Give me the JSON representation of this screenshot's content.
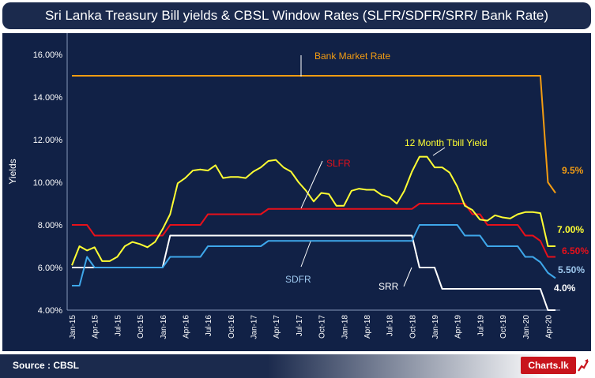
{
  "title": "Sri Lanka Treasury Bill yields  &  CBSL  Window  Rates (SLFR/SDFR/SRR/ Bank Rate)",
  "source": "Source : CBSL",
  "logo_text": "Charts.lk",
  "chart_data": {
    "type": "line",
    "ylabel": "Yields",
    "ylim": [
      4,
      17
    ],
    "yticks": [
      "4.00%",
      "6.00%",
      "8.00%",
      "10.00%",
      "12.00%",
      "14.00%",
      "16.00%"
    ],
    "yticks_values": [
      4,
      6,
      8,
      10,
      12,
      14,
      16
    ],
    "xtick_labels": [
      "Jan-15",
      "Apr-15",
      "Jul-15",
      "Oct-15",
      "Jan-16",
      "Apr-16",
      "Jul-16",
      "Oct-16",
      "Jan-17",
      "Apr-17",
      "Jul-17",
      "Oct-17",
      "Jan-18",
      "Apr-18",
      "Jul-18",
      "Oct-18",
      "Jan-19",
      "Apr-19",
      "Jul-19",
      "Oct-19",
      "Jan-20",
      "Apr-20"
    ],
    "x": [
      "Jan-15",
      "Feb-15",
      "Mar-15",
      "Apr-15",
      "May-15",
      "Jun-15",
      "Jul-15",
      "Aug-15",
      "Sep-15",
      "Oct-15",
      "Nov-15",
      "Dec-15",
      "Jan-16",
      "Feb-16",
      "Mar-16",
      "Apr-16",
      "May-16",
      "Jun-16",
      "Jul-16",
      "Aug-16",
      "Sep-16",
      "Oct-16",
      "Nov-16",
      "Dec-16",
      "Jan-17",
      "Feb-17",
      "Mar-17",
      "Apr-17",
      "May-17",
      "Jun-17",
      "Jul-17",
      "Aug-17",
      "Sep-17",
      "Oct-17",
      "Nov-17",
      "Dec-17",
      "Jan-18",
      "Feb-18",
      "Mar-18",
      "Apr-18",
      "May-18",
      "Jun-18",
      "Jul-18",
      "Aug-18",
      "Sep-18",
      "Oct-18",
      "Nov-18",
      "Dec-18",
      "Jan-19",
      "Feb-19",
      "Mar-19",
      "Apr-19",
      "May-19",
      "Jun-19",
      "Jul-19",
      "Aug-19",
      "Sep-19",
      "Oct-19",
      "Nov-19",
      "Dec-19",
      "Jan-20",
      "Feb-20",
      "Mar-20",
      "Apr-20",
      "May-20"
    ],
    "series": [
      {
        "name": "Bank Market Rate",
        "color": "#f39c12",
        "values": [
          15,
          15,
          15,
          15,
          15,
          15,
          15,
          15,
          15,
          15,
          15,
          15,
          15,
          15,
          15,
          15,
          15,
          15,
          15,
          15,
          15,
          15,
          15,
          15,
          15,
          15,
          15,
          15,
          15,
          15,
          15,
          15,
          15,
          15,
          15,
          15,
          15,
          15,
          15,
          15,
          15,
          15,
          15,
          15,
          15,
          15,
          15,
          15,
          15,
          15,
          15,
          15,
          15,
          15,
          15,
          15,
          15,
          15,
          15,
          15,
          15,
          15,
          15,
          10,
          9.5
        ]
      },
      {
        "name": "12 Month Tbill Yield",
        "color": "#ffff33",
        "values": [
          6.1,
          7.0,
          6.8,
          6.95,
          6.3,
          6.3,
          6.5,
          7.0,
          7.2,
          7.1,
          6.95,
          7.2,
          7.8,
          8.5,
          9.95,
          10.2,
          10.55,
          10.6,
          10.55,
          10.8,
          10.2,
          10.25,
          10.25,
          10.2,
          10.5,
          10.7,
          11.0,
          11.05,
          10.7,
          10.5,
          10.0,
          9.6,
          9.1,
          9.5,
          9.45,
          8.9,
          8.9,
          9.6,
          9.7,
          9.65,
          9.65,
          9.4,
          9.3,
          9.0,
          9.6,
          10.5,
          11.2,
          11.2,
          10.7,
          10.7,
          10.45,
          9.8,
          8.9,
          8.7,
          8.25,
          8.2,
          8.45,
          8.35,
          8.3,
          8.5,
          8.6,
          8.6,
          8.55,
          7.0,
          7.0
        ]
      },
      {
        "name": "SLFR",
        "color": "#e8101a",
        "values": [
          8,
          8,
          8,
          7.5,
          7.5,
          7.5,
          7.5,
          7.5,
          7.5,
          7.5,
          7.5,
          7.5,
          7.5,
          8,
          8,
          8,
          8,
          8,
          8.5,
          8.5,
          8.5,
          8.5,
          8.5,
          8.5,
          8.5,
          8.5,
          8.75,
          8.75,
          8.75,
          8.75,
          8.75,
          8.75,
          8.75,
          8.75,
          8.75,
          8.75,
          8.75,
          8.75,
          8.75,
          8.75,
          8.75,
          8.75,
          8.75,
          8.75,
          8.75,
          8.75,
          9,
          9,
          9,
          9,
          9,
          9,
          9,
          8.5,
          8.5,
          8,
          8,
          8,
          8,
          8,
          7.5,
          7.5,
          7.25,
          6.5,
          6.5
        ]
      },
      {
        "name": "SDFR",
        "color": "#3ea7ea",
        "values": [
          5.15,
          5.15,
          6.5,
          6,
          6,
          6,
          6,
          6,
          6,
          6,
          6,
          6,
          6,
          6.5,
          6.5,
          6.5,
          6.5,
          6.5,
          7,
          7,
          7,
          7,
          7,
          7,
          7,
          7,
          7.25,
          7.25,
          7.25,
          7.25,
          7.25,
          7.25,
          7.25,
          7.25,
          7.25,
          7.25,
          7.25,
          7.25,
          7.25,
          7.25,
          7.25,
          7.25,
          7.25,
          7.25,
          7.25,
          7.25,
          8,
          8,
          8,
          8,
          8,
          8,
          7.5,
          7.5,
          7.5,
          7,
          7,
          7,
          7,
          7,
          6.5,
          6.5,
          6.25,
          5.75,
          5.5
        ]
      },
      {
        "name": "SRR",
        "color": "#ffffff",
        "values": [
          6,
          6,
          6,
          6,
          6,
          6,
          6,
          6,
          6,
          6,
          6,
          6,
          6,
          7.5,
          7.5,
          7.5,
          7.5,
          7.5,
          7.5,
          7.5,
          7.5,
          7.5,
          7.5,
          7.5,
          7.5,
          7.5,
          7.5,
          7.5,
          7.5,
          7.5,
          7.5,
          7.5,
          7.5,
          7.5,
          7.5,
          7.5,
          7.5,
          7.5,
          7.5,
          7.5,
          7.5,
          7.5,
          7.5,
          7.5,
          7.5,
          7.5,
          6,
          6,
          6,
          5,
          5,
          5,
          5,
          5,
          5,
          5,
          5,
          5,
          5,
          5,
          5,
          5,
          5,
          4,
          4
        ]
      }
    ],
    "annotations": [
      {
        "series": "Bank Market Rate",
        "label": "Bank Market Rate",
        "color": "#f39c12"
      },
      {
        "series": "12 Month Tbill Yield",
        "label": "12 Month Tbill Yield",
        "color": "#ffff33"
      },
      {
        "series": "SLFR",
        "label": "SLFR",
        "color": "#e8101a"
      },
      {
        "series": "SDFR",
        "label": "SDFR",
        "color": "#9ec8ee"
      },
      {
        "series": "SRR",
        "label": "SRR",
        "color": "#ffffff"
      }
    ],
    "end_labels": [
      {
        "series": "Bank Market Rate",
        "label": "9.5%",
        "color": "#f39c12"
      },
      {
        "series": "12 Month Tbill Yield",
        "label": "7.00%",
        "color": "#ffff33"
      },
      {
        "series": "SLFR",
        "label": "6.50%",
        "color": "#e8101a"
      },
      {
        "series": "SDFR",
        "label": "5.50%",
        "color": "#9ec8ee"
      },
      {
        "series": "SRR",
        "label": "4.0%",
        "color": "#ffffff"
      }
    ],
    "grid": false,
    "legend": "none"
  }
}
